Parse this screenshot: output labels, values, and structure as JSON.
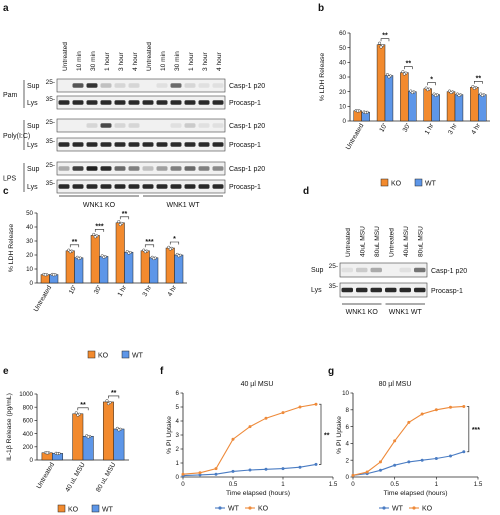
{
  "panel_letters": [
    "a",
    "b",
    "c",
    "d",
    "e",
    "f",
    "g"
  ],
  "blot_a": {
    "lanes": [
      "Untreated",
      "10 min",
      "30 min",
      "1 hour",
      "3 hour",
      "4 hour",
      "Untreated",
      "10 min",
      "30 min",
      "1 hour",
      "3 hour",
      "4 hour"
    ],
    "blocks": [
      {
        "name": "Pam",
        "rows": [
          {
            "frac": "Sup",
            "marker": "25-",
            "band": "Casp-1 p20",
            "intensity": [
              0,
              0.7,
              0.85,
              0.2,
              0.1,
              0.1,
              0,
              0.05,
              0.6,
              0.1,
              0.05,
              0.05
            ]
          },
          {
            "frac": "Lys",
            "marker": "35-",
            "band": "Procasp-1",
            "intensity": [
              0.9,
              0.9,
              0.9,
              0.9,
              0.9,
              0.9,
              0.9,
              0.9,
              0.9,
              0.9,
              0.9,
              0.9
            ]
          }
        ]
      },
      {
        "name": "Poly(I:C)",
        "rows": [
          {
            "frac": "Sup",
            "marker": "25-",
            "band": "Casp-1 p20",
            "intensity": [
              0,
              0,
              0.1,
              0.75,
              0.1,
              0.1,
              0,
              0,
              0.05,
              0.15,
              0.05,
              0.05
            ]
          },
          {
            "frac": "Lys",
            "marker": "35-",
            "band": "Procasp-1",
            "intensity": [
              0.9,
              0.9,
              0.9,
              0.9,
              0.9,
              0.9,
              0.9,
              0.9,
              0.9,
              0.9,
              0.9,
              0.9
            ]
          }
        ]
      },
      {
        "name": "LPS",
        "rows": [
          {
            "frac": "Sup",
            "marker": "25-",
            "band": "Casp-1 p20",
            "intensity": [
              0.3,
              0.8,
              0.95,
              0.9,
              0.6,
              0.5,
              0.2,
              0.35,
              0.5,
              0.6,
              0.5,
              0.45
            ]
          },
          {
            "frac": "Lys",
            "marker": "35-",
            "band": "Procasp-1",
            "intensity": [
              0.9,
              0.9,
              0.9,
              0.9,
              0.9,
              0.9,
              0.9,
              0.9,
              0.9,
              0.9,
              0.9,
              0.9
            ]
          }
        ]
      }
    ],
    "groups": [
      "WNK1 KO",
      "WNK1 WT"
    ]
  },
  "blot_d": {
    "lanes": [
      "Untreated",
      "40uL MSU",
      "80uL MSU",
      "Untreated",
      "40uL MSU",
      "80uL MSU"
    ],
    "rows": [
      {
        "frac": "Sup",
        "marker": "25-",
        "band": "Casp-1 p20",
        "intensity": [
          0.05,
          0.15,
          0.3,
          0,
          0.05,
          0.55
        ]
      },
      {
        "frac": "Lys",
        "marker": "35-",
        "band": "Procasp-1",
        "intensity": [
          0.9,
          0.9,
          0.9,
          0.9,
          0.9,
          0.9
        ]
      }
    ],
    "groups": [
      "WNK1 KO",
      "WNK1 WT"
    ]
  },
  "colors": {
    "ko": "#F28A2E",
    "wt": "#5D96E8",
    "line_wt": "#4A7CC3",
    "line_ko": "#EE8A3A"
  },
  "chart_data": [
    {
      "id": "b",
      "type": "bar",
      "title": "",
      "ylabel": "% LDH Release",
      "xlabel": "",
      "ylim": [
        0,
        60
      ],
      "yticks": [
        0,
        10,
        20,
        30,
        40,
        50,
        60
      ],
      "categories": [
        "Untreated",
        "10'",
        "30'",
        "1 hr",
        "3 hr",
        "4 hr"
      ],
      "series": [
        {
          "name": "KO",
          "values": [
            7,
            52,
            33,
            22,
            20,
            23
          ]
        },
        {
          "name": "WT",
          "values": [
            6,
            31,
            20,
            18,
            18,
            18
          ]
        }
      ],
      "significance": [
        "",
        "**",
        "**",
        "*",
        "",
        "**"
      ],
      "legend": "bottom"
    },
    {
      "id": "c",
      "type": "bar",
      "title": "",
      "ylabel": "% LDH Release",
      "xlabel": "",
      "ylim": [
        0,
        50
      ],
      "yticks": [
        0,
        10,
        20,
        30,
        40,
        50
      ],
      "categories": [
        "Untreated",
        "10'",
        "30'",
        "1 hr",
        "3 hr",
        "4 hr"
      ],
      "series": [
        {
          "name": "KO",
          "values": [
            6,
            23,
            34,
            43,
            23,
            25
          ]
        },
        {
          "name": "WT",
          "values": [
            6,
            18,
            19,
            22,
            18,
            20
          ]
        }
      ],
      "significance": [
        "",
        "**",
        "***",
        "**",
        "***",
        "*"
      ],
      "legend": "bottom"
    },
    {
      "id": "e",
      "type": "bar",
      "title": "",
      "ylabel": "IL-1β Release (pg/mL)",
      "xlabel": "",
      "ylim": [
        0,
        1000
      ],
      "yticks": [
        0,
        200,
        400,
        600,
        800,
        1000
      ],
      "categories": [
        "Untreated",
        "40 uL MSU",
        "80 uL MSU"
      ],
      "series": [
        {
          "name": "KO",
          "values": [
            110,
            700,
            880
          ]
        },
        {
          "name": "WT",
          "values": [
            100,
            360,
            470
          ]
        }
      ],
      "significance": [
        "",
        "**",
        "**"
      ],
      "legend": "bottom"
    },
    {
      "id": "f",
      "type": "line",
      "title": "40 µl MSU",
      "ylabel": "% PI Uptake",
      "xlabel": "Time elapsed (hours)",
      "xlim": [
        0,
        1.5
      ],
      "xticks": [
        0,
        0.5,
        1,
        1.5
      ],
      "ylim": [
        0,
        6
      ],
      "yticks": [
        0,
        1,
        2,
        3,
        4,
        5,
        6
      ],
      "x": [
        0,
        0.17,
        0.33,
        0.5,
        0.67,
        0.83,
        1.0,
        1.17,
        1.33
      ],
      "series": [
        {
          "name": "WT",
          "values": [
            0.1,
            0.15,
            0.2,
            0.4,
            0.5,
            0.55,
            0.6,
            0.7,
            0.9
          ]
        },
        {
          "name": "KO",
          "values": [
            0.2,
            0.3,
            0.6,
            2.7,
            3.6,
            4.2,
            4.6,
            5.0,
            5.2
          ]
        }
      ],
      "significance": "**",
      "legend": "bottom"
    },
    {
      "id": "g",
      "type": "line",
      "title": "80 µl MSU",
      "ylabel": "% PI Uptake",
      "xlabel": "Time elapsed (hours)",
      "xlim": [
        0,
        1.5
      ],
      "xticks": [
        0,
        0.5,
        1,
        1.5
      ],
      "ylim": [
        0,
        10
      ],
      "yticks": [
        0,
        2,
        4,
        6,
        8,
        10
      ],
      "x": [
        0,
        0.17,
        0.33,
        0.5,
        0.67,
        0.83,
        1.0,
        1.17,
        1.33
      ],
      "series": [
        {
          "name": "WT",
          "values": [
            0.2,
            0.4,
            0.8,
            1.4,
            1.8,
            2.0,
            2.2,
            2.5,
            3.0
          ]
        },
        {
          "name": "KO",
          "values": [
            0.2,
            0.6,
            1.8,
            4.3,
            6.5,
            7.5,
            8.0,
            8.3,
            8.4
          ]
        }
      ],
      "significance": "***",
      "legend": "bottom"
    }
  ]
}
